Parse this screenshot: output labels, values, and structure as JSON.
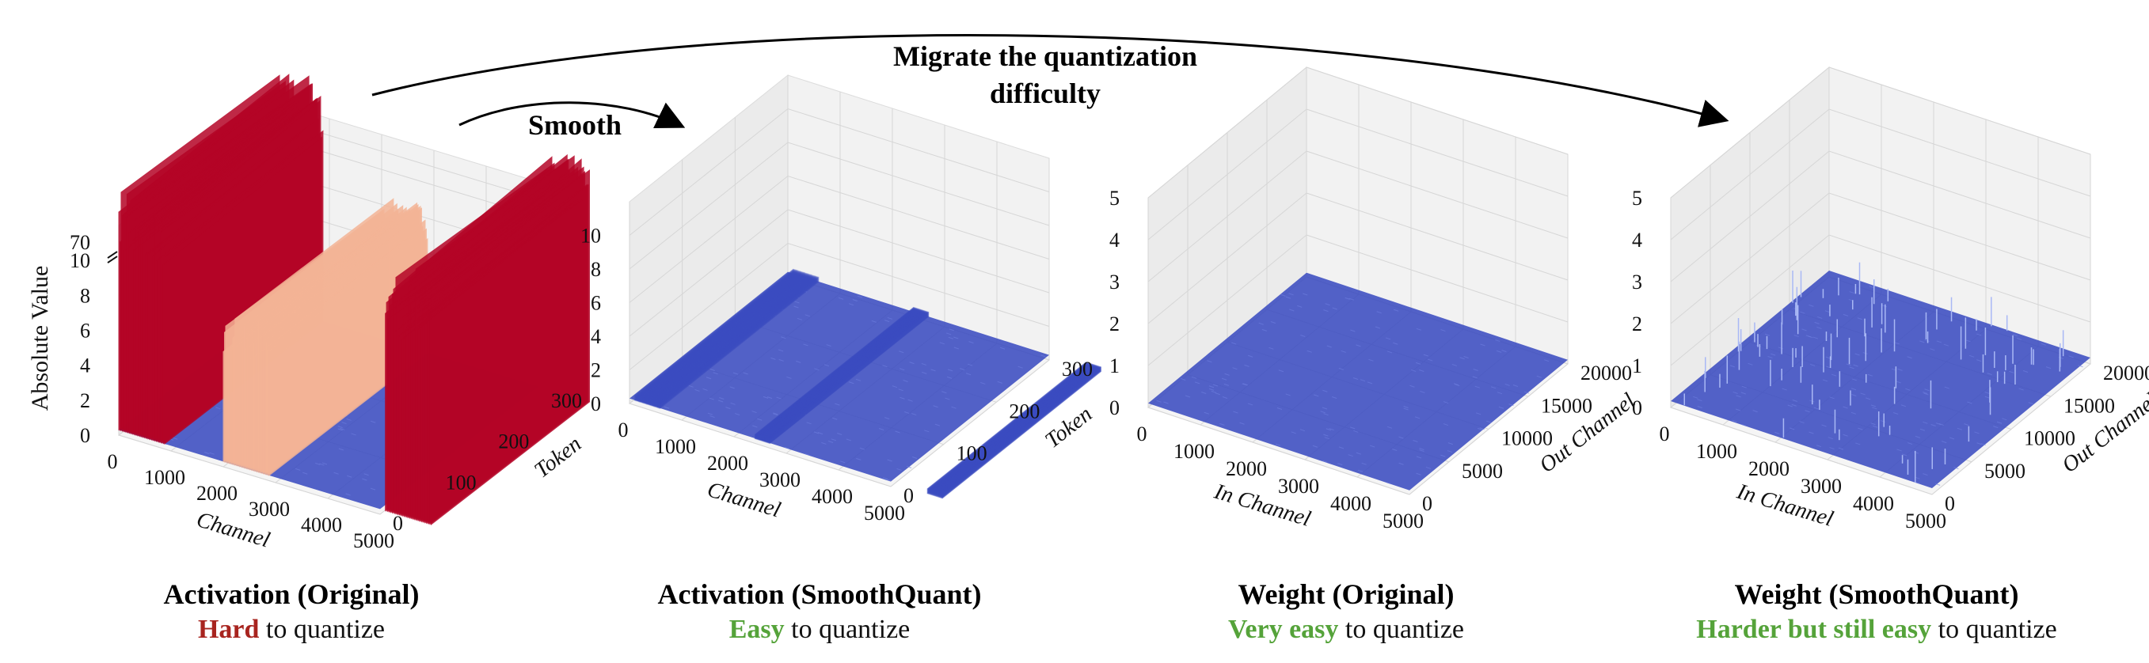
{
  "annotations": {
    "smooth": "Smooth",
    "migrate_line1": "Migrate the quantization",
    "migrate_line2": "difficulty"
  },
  "colors": {
    "low": "#3b4cc0",
    "mid": "#f4b496",
    "high": "#b40426",
    "hard_text": "#a8241f",
    "easy_text": "#55a33a"
  },
  "chart_data": [
    {
      "type": "surface3d",
      "zlabel": "Absolute Value",
      "xlabel": "Channel",
      "ylabel": "Token",
      "xticks": [
        "0",
        "1000",
        "2000",
        "3000",
        "4000",
        "5000"
      ],
      "yticks": [
        "0",
        "100",
        "200",
        "300"
      ],
      "zticks": [
        "0",
        "2",
        "4",
        "6",
        "8",
        "10",
        "70"
      ],
      "zlim_display": [
        0,
        12
      ],
      "axis_break": "between 10 and 70",
      "caption_title": "Activation (Original)",
      "caption_emph": "Hard",
      "caption_rest": " to quantize",
      "emph_class": "hard",
      "outlier_channels": [
        {
          "from": 0,
          "to": 0.9,
          "value": 70,
          "level": "high"
        },
        {
          "from": 2.0,
          "to": 2.9,
          "value": 8.5,
          "level": "mid"
        },
        {
          "from": 5.1,
          "to": 6.0,
          "value": 70,
          "level": "high"
        }
      ],
      "base_value": 0.3,
      "grid": true
    },
    {
      "type": "surface3d",
      "xlabel": "Channel",
      "ylabel": "Token",
      "xticks": [
        "0",
        "1000",
        "2000",
        "3000",
        "4000",
        "5000"
      ],
      "yticks": [
        "0",
        "100",
        "200",
        "300"
      ],
      "zticks": [
        "0",
        "2",
        "4",
        "6",
        "8",
        "10"
      ],
      "zlim_display": [
        0,
        12
      ],
      "caption_title": "Activation (SmoothQuant)",
      "caption_emph": "Easy",
      "caption_rest": " to quantize",
      "emph_class": "easy",
      "outlier_channels": [
        {
          "from": 0.1,
          "to": 0.6,
          "value": 0.7,
          "level": "low"
        },
        {
          "from": 2.4,
          "to": 2.7,
          "value": 0.7,
          "level": "low"
        },
        {
          "from": 5.7,
          "to": 6.0,
          "value": 0.7,
          "level": "low"
        }
      ],
      "base_value": 0.3,
      "grid": true
    },
    {
      "type": "surface3d",
      "xlabel": "In Channel",
      "ylabel": "Out Channel",
      "xticks": [
        "0",
        "1000",
        "2000",
        "3000",
        "4000",
        "5000"
      ],
      "yticks": [
        "0",
        "5000",
        "10000",
        "15000",
        "20000"
      ],
      "zticks": [
        "0",
        "1",
        "2",
        "3",
        "4",
        "5"
      ],
      "zlim_display": [
        0,
        5
      ],
      "caption_title": "Weight (Original)",
      "caption_emph": "Very easy",
      "caption_rest": " to quantize",
      "emph_class": "easy",
      "outlier_channels": [],
      "base_value": 0.1,
      "grid": true
    },
    {
      "type": "surface3d",
      "xlabel": "In Channel",
      "ylabel": "Out Channel",
      "xticks": [
        "0",
        "1000",
        "2000",
        "3000",
        "4000",
        "5000"
      ],
      "yticks": [
        "0",
        "5000",
        "10000",
        "15000",
        "20000"
      ],
      "zticks": [
        "0",
        "1",
        "2",
        "3",
        "4",
        "5"
      ],
      "zlim_display": [
        0,
        5
      ],
      "caption_title": "Weight (SmoothQuant)",
      "caption_emph": "Harder but still easy",
      "caption_rest": " to quantize",
      "emph_class": "easy",
      "outlier_channels": [],
      "base_value": 0.15,
      "spikes": true,
      "grid": true
    }
  ]
}
